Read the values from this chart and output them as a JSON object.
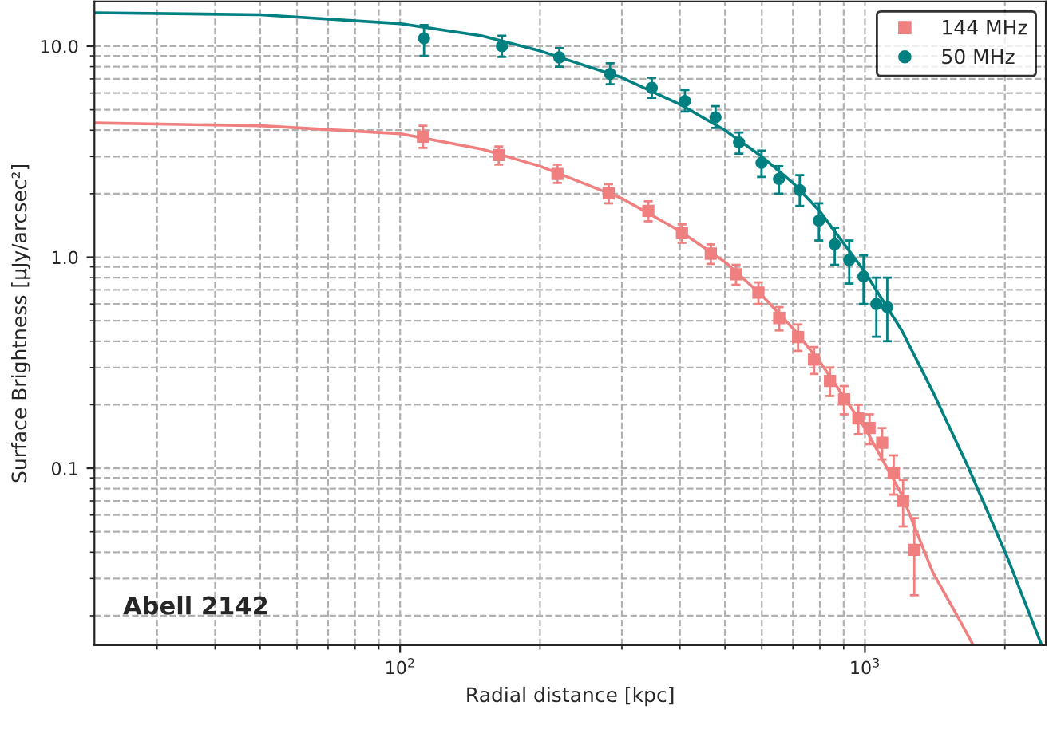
{
  "chart_data": {
    "type": "scatter",
    "xlabel": "Radial distance [kpc]",
    "ylabel": "Surface Brightness [μJy/arcsec²]",
    "log": "xy",
    "grid": true,
    "legend": "top right",
    "xlim": [
      22,
      2450
    ],
    "xticks": [
      {
        "value": 100,
        "label": "10$^{2}$"
      },
      {
        "value": 1000,
        "label": "10$^{3}$"
      }
    ],
    "ylim": [
      0.0145,
      16.3
    ],
    "yticks": [
      {
        "value": 0.1,
        "label": "0.1"
      },
      {
        "value": 1,
        "label": "1.0"
      },
      {
        "value": 10,
        "label": "10.0"
      }
    ],
    "annotations": [
      "Abell 2142"
    ],
    "series": [
      {
        "type": "line",
        "color": "#f08080",
        "x": [
          22,
          50,
          100,
          150,
          200,
          300,
          400,
          500,
          600,
          700,
          800,
          1000,
          1200,
          1400,
          1600,
          1710
        ],
        "values": [
          4.33,
          4.2,
          3.85,
          3.25,
          2.7,
          1.9,
          1.33,
          0.95,
          0.66,
          0.46,
          0.32,
          0.155,
          0.075,
          0.032,
          0.019,
          0.0145
        ]
      },
      {
        "type": "line",
        "color": "#008080",
        "x": [
          22,
          50,
          100,
          150,
          200,
          300,
          400,
          500,
          600,
          700,
          800,
          1000,
          1200,
          1400,
          1672,
          2018,
          2400
        ],
        "values": [
          14.4,
          14.1,
          12.8,
          11.2,
          9.5,
          7.1,
          5.3,
          4.0,
          3.0,
          2.25,
          1.65,
          0.85,
          0.45,
          0.23,
          0.1,
          0.0385,
          0.0145
        ]
      },
      {
        "name": "144 MHz",
        "color": "#f08080",
        "marker": "square",
        "x": [
          112,
          163,
          218,
          281,
          342,
          404,
          466,
          528,
          590,
          654,
          718,
          777,
          841,
          902,
          968,
          1023,
          1089,
          1153,
          1208,
          1277
        ],
        "values": [
          3.73,
          3.05,
          2.48,
          2.01,
          1.66,
          1.3,
          1.04,
          0.83,
          0.68,
          0.515,
          0.418,
          0.327,
          0.259,
          0.212,
          0.172,
          0.155,
          0.132,
          0.095,
          0.07,
          0.041
        ],
        "errors": [
          [
            3.3,
            4.2
          ],
          [
            2.75,
            3.35
          ],
          [
            2.25,
            2.75
          ],
          [
            1.8,
            2.22
          ],
          [
            1.48,
            1.84
          ],
          [
            1.17,
            1.43
          ],
          [
            0.93,
            1.15
          ],
          [
            0.74,
            0.92
          ],
          [
            0.6,
            0.76
          ],
          [
            0.45,
            0.58
          ],
          [
            0.36,
            0.48
          ],
          [
            0.28,
            0.375
          ],
          [
            0.22,
            0.3
          ],
          [
            0.18,
            0.245
          ],
          [
            0.145,
            0.2
          ],
          [
            0.13,
            0.18
          ],
          [
            0.11,
            0.155
          ],
          [
            0.075,
            0.115
          ],
          [
            0.053,
            0.088
          ],
          [
            0.025,
            0.058
          ]
        ]
      },
      {
        "name": "50 MHz",
        "color": "#008080",
        "marker": "circle",
        "x": [
          112.6,
          165.6,
          220,
          283,
          348,
          410,
          477,
          536,
          599,
          653,
          724,
          796,
          861,
          925,
          993,
          1058,
          1117
        ],
        "values": [
          10.9,
          10.0,
          8.85,
          7.4,
          6.35,
          5.5,
          4.6,
          3.5,
          2.8,
          2.35,
          2.08,
          1.49,
          1.15,
          0.97,
          0.81,
          0.6,
          0.58
        ],
        "errors": [
          [
            9.0,
            12.6
          ],
          [
            8.9,
            11.2
          ],
          [
            8.0,
            9.8
          ],
          [
            6.6,
            8.3
          ],
          [
            5.7,
            7.1
          ],
          [
            4.9,
            6.2
          ],
          [
            4.1,
            5.2
          ],
          [
            3.1,
            3.9
          ],
          [
            2.4,
            3.2
          ],
          [
            2.0,
            2.7
          ],
          [
            1.75,
            2.45
          ],
          [
            1.2,
            1.8
          ],
          [
            0.92,
            1.38
          ],
          [
            0.75,
            1.2
          ],
          [
            0.6,
            1.02
          ],
          [
            0.42,
            0.8
          ],
          [
            0.4,
            0.8
          ]
        ]
      }
    ]
  }
}
